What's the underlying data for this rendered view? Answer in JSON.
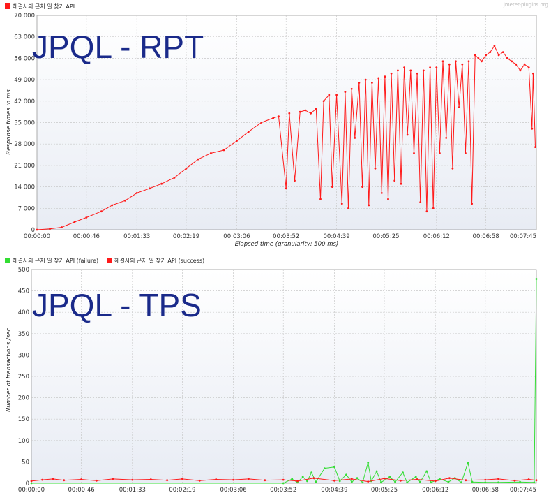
{
  "chart_data": [
    {
      "type": "line",
      "overlay_title": "JPQL - RPT",
      "credit": "jmeter-plugins.org",
      "ylabel": "Response times in ms",
      "xlabel": "Elapsed time (granularity: 500 ms)",
      "ylim": [
        0,
        70000
      ],
      "yticks": [
        "0",
        "7 000",
        "14 000",
        "21 000",
        "28 000",
        "35 000",
        "42 000",
        "49 000",
        "56 000",
        "63 000",
        "70 000"
      ],
      "xlim": [
        "00:00:00",
        "00:07:45"
      ],
      "xticks": [
        "00:00:00",
        "00:00:46",
        "00:01:33",
        "00:02:19",
        "00:03:06",
        "00:03:52",
        "00:04:39",
        "00:05:25",
        "00:06:12",
        "00:06:58",
        "00:07:45"
      ],
      "grid": true,
      "legend_position": "top-left",
      "colors": {
        "series": "#ff1a1a",
        "plot_bg_top": "#ffffff",
        "plot_bg_bottom": "#e8ecf4",
        "grid": "#c8c8c8"
      },
      "series": [
        {
          "name": "해결사의 근처 일 찾기 API",
          "color": "#ff1a1a",
          "points": [
            [
              "00:00:00",
              0
            ],
            [
              "00:00:12",
              300
            ],
            [
              "00:00:23",
              800
            ],
            [
              "00:00:35",
              2500
            ],
            [
              "00:00:46",
              4000
            ],
            [
              "00:01:00",
              6000
            ],
            [
              "00:01:10",
              8000
            ],
            [
              "00:01:22",
              9500
            ],
            [
              "00:01:33",
              12000
            ],
            [
              "00:01:45",
              13500
            ],
            [
              "00:01:56",
              15000
            ],
            [
              "00:02:08",
              17000
            ],
            [
              "00:02:19",
              20000
            ],
            [
              "00:02:30",
              23000
            ],
            [
              "00:02:42",
              25000
            ],
            [
              "00:02:54",
              26000
            ],
            [
              "00:03:06",
              29000
            ],
            [
              "00:03:17",
              32000
            ],
            [
              "00:03:29",
              35000
            ],
            [
              "00:03:40",
              36500
            ],
            [
              "00:03:45",
              37000
            ],
            [
              "00:03:52",
              13500
            ],
            [
              "00:03:55",
              38000
            ],
            [
              "00:04:00",
              16000
            ],
            [
              "00:04:05",
              38500
            ],
            [
              "00:04:10",
              39000
            ],
            [
              "00:04:15",
              38000
            ],
            [
              "00:04:20",
              39500
            ],
            [
              "00:04:24",
              10000
            ],
            [
              "00:04:27",
              42000
            ],
            [
              "00:04:32",
              44000
            ],
            [
              "00:04:35",
              14000
            ],
            [
              "00:04:39",
              44000
            ],
            [
              "00:04:44",
              8500
            ],
            [
              "00:04:47",
              45000
            ],
            [
              "00:04:50",
              7000
            ],
            [
              "00:04:53",
              46000
            ],
            [
              "00:04:56",
              30000
            ],
            [
              "00:05:00",
              48000
            ],
            [
              "00:05:03",
              14000
            ],
            [
              "00:05:06",
              49000
            ],
            [
              "00:05:09",
              8000
            ],
            [
              "00:05:12",
              48000
            ],
            [
              "00:05:15",
              20000
            ],
            [
              "00:05:18",
              49500
            ],
            [
              "00:05:21",
              12000
            ],
            [
              "00:05:24",
              50000
            ],
            [
              "00:05:27",
              10000
            ],
            [
              "00:05:30",
              51000
            ],
            [
              "00:05:33",
              16000
            ],
            [
              "00:05:36",
              52000
            ],
            [
              "00:05:39",
              15000
            ],
            [
              "00:05:42",
              53000
            ],
            [
              "00:05:45",
              31000
            ],
            [
              "00:05:48",
              52000
            ],
            [
              "00:05:51",
              25000
            ],
            [
              "00:05:54",
              51000
            ],
            [
              "00:05:57",
              9000
            ],
            [
              "00:06:00",
              52000
            ],
            [
              "00:06:03",
              6000
            ],
            [
              "00:06:06",
              53000
            ],
            [
              "00:06:09",
              7000
            ],
            [
              "00:06:12",
              53000
            ],
            [
              "00:06:15",
              25000
            ],
            [
              "00:06:18",
              55000
            ],
            [
              "00:06:21",
              30000
            ],
            [
              "00:06:24",
              54000
            ],
            [
              "00:06:27",
              20000
            ],
            [
              "00:06:30",
              55000
            ],
            [
              "00:06:33",
              40000
            ],
            [
              "00:06:36",
              54000
            ],
            [
              "00:06:39",
              25000
            ],
            [
              "00:06:42",
              55000
            ],
            [
              "00:06:45",
              8500
            ],
            [
              "00:06:48",
              57000
            ],
            [
              "00:06:51",
              56000
            ],
            [
              "00:06:54",
              55000
            ],
            [
              "00:06:58",
              57000
            ],
            [
              "00:07:02",
              58000
            ],
            [
              "00:07:06",
              60000
            ],
            [
              "00:07:10",
              57000
            ],
            [
              "00:07:14",
              58000
            ],
            [
              "00:07:18",
              56000
            ],
            [
              "00:07:22",
              55000
            ],
            [
              "00:07:26",
              54000
            ],
            [
              "00:07:30",
              52000
            ],
            [
              "00:07:34",
              54000
            ],
            [
              "00:07:38",
              53000
            ],
            [
              "00:07:41",
              33000
            ],
            [
              "00:07:42",
              51000
            ],
            [
              "00:07:44",
              27000
            ]
          ]
        }
      ]
    },
    {
      "type": "line",
      "overlay_title": "JPQL - TPS",
      "ylabel": "Number of transactions /sec",
      "ylim": [
        0,
        500
      ],
      "yticks": [
        "0",
        "50",
        "100",
        "150",
        "200",
        "250",
        "300",
        "350",
        "400",
        "450",
        "500"
      ],
      "xlim": [
        "00:00:00",
        "00:07:45"
      ],
      "xticks": [
        "00:00:00",
        "00:00:46",
        "00:01:33",
        "00:02:19",
        "00:03:06",
        "00:03:52",
        "00:04:39",
        "00:05:25",
        "00:06:12",
        "00:06:58",
        "00:07:45"
      ],
      "grid": true,
      "legend_position": "top-left",
      "colors": {
        "failure": "#33dd33",
        "success": "#ff1a1a"
      },
      "series": [
        {
          "name": "해결사의 근처 일 찾기 API (failure)",
          "color": "#33dd33",
          "points": [
            [
              "00:00:00",
              0
            ],
            [
              "00:03:52",
              0
            ],
            [
              "00:04:00",
              10
            ],
            [
              "00:04:05",
              2
            ],
            [
              "00:04:10",
              15
            ],
            [
              "00:04:14",
              5
            ],
            [
              "00:04:18",
              25
            ],
            [
              "00:04:22",
              3
            ],
            [
              "00:04:30",
              35
            ],
            [
              "00:04:39",
              38
            ],
            [
              "00:04:44",
              5
            ],
            [
              "00:04:50",
              20
            ],
            [
              "00:04:55",
              3
            ],
            [
              "00:05:00",
              12
            ],
            [
              "00:05:05",
              2
            ],
            [
              "00:05:10",
              48
            ],
            [
              "00:05:13",
              5
            ],
            [
              "00:05:18",
              28
            ],
            [
              "00:05:22",
              2
            ],
            [
              "00:05:30",
              15
            ],
            [
              "00:05:35",
              3
            ],
            [
              "00:05:42",
              25
            ],
            [
              "00:05:46",
              2
            ],
            [
              "00:05:54",
              15
            ],
            [
              "00:05:58",
              3
            ],
            [
              "00:06:04",
              28
            ],
            [
              "00:06:08",
              2
            ],
            [
              "00:06:16",
              10
            ],
            [
              "00:06:24",
              3
            ],
            [
              "00:06:30",
              12
            ],
            [
              "00:06:36",
              2
            ],
            [
              "00:06:42",
              48
            ],
            [
              "00:06:46",
              3
            ],
            [
              "00:06:58",
              2
            ],
            [
              "00:07:10",
              2
            ],
            [
              "00:07:30",
              3
            ],
            [
              "00:07:43",
              2
            ],
            [
              "00:07:45",
              478
            ]
          ]
        },
        {
          "name": "해결사의 근처 일 찾기 API (success)",
          "color": "#ff1a1a",
          "points": [
            [
              "00:00:00",
              5
            ],
            [
              "00:00:10",
              8
            ],
            [
              "00:00:20",
              10
            ],
            [
              "00:00:30",
              7
            ],
            [
              "00:00:46",
              9
            ],
            [
              "00:01:00",
              6
            ],
            [
              "00:01:15",
              10
            ],
            [
              "00:01:33",
              8
            ],
            [
              "00:01:50",
              9
            ],
            [
              "00:02:05",
              7
            ],
            [
              "00:02:19",
              10
            ],
            [
              "00:02:35",
              6
            ],
            [
              "00:02:50",
              9
            ],
            [
              "00:03:06",
              8
            ],
            [
              "00:03:20",
              10
            ],
            [
              "00:03:35",
              7
            ],
            [
              "00:03:52",
              8
            ],
            [
              "00:04:05",
              5
            ],
            [
              "00:04:20",
              12
            ],
            [
              "00:04:39",
              6
            ],
            [
              "00:04:55",
              10
            ],
            [
              "00:05:10",
              4
            ],
            [
              "00:05:25",
              11
            ],
            [
              "00:05:40",
              6
            ],
            [
              "00:05:55",
              9
            ],
            [
              "00:06:12",
              5
            ],
            [
              "00:06:25",
              12
            ],
            [
              "00:06:40",
              7
            ],
            [
              "00:06:58",
              8
            ],
            [
              "00:07:10",
              10
            ],
            [
              "00:07:25",
              6
            ],
            [
              "00:07:38",
              9
            ],
            [
              "00:07:45",
              7
            ]
          ]
        }
      ]
    }
  ]
}
